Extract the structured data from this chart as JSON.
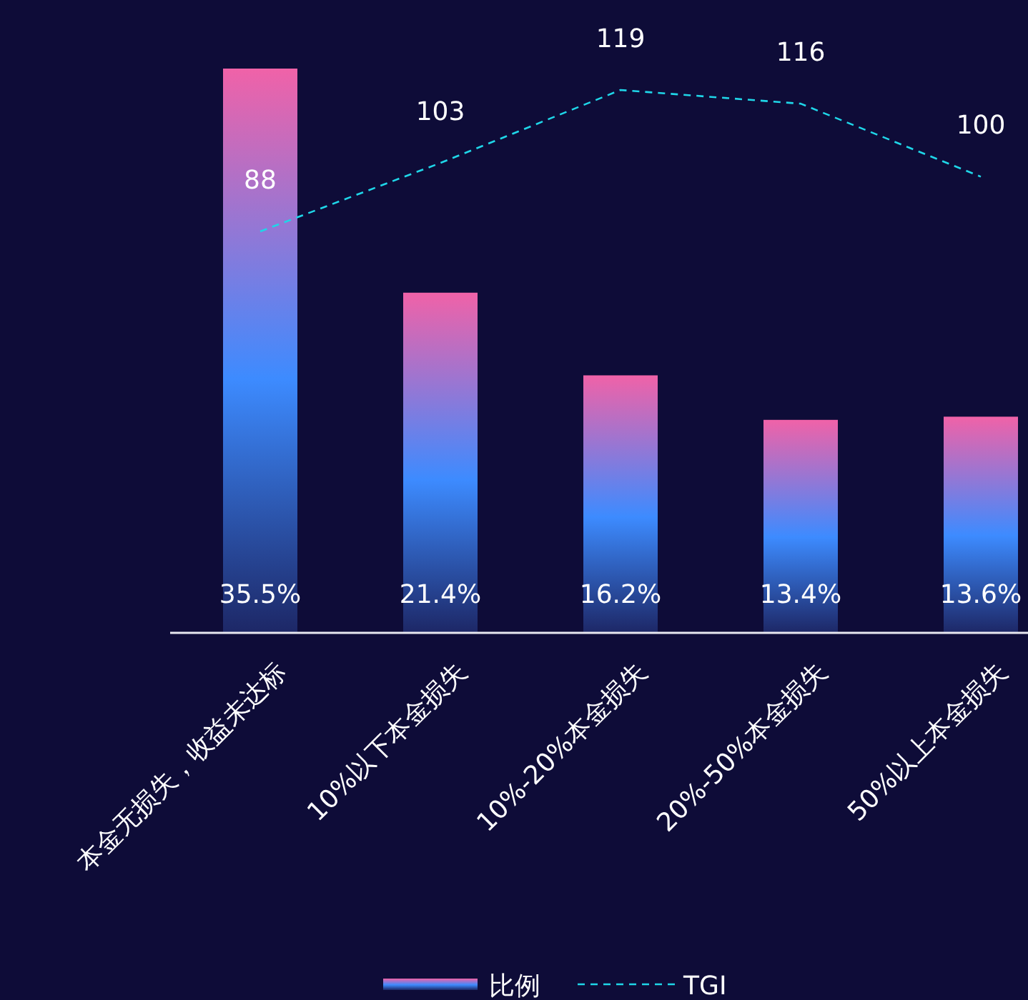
{
  "chart_data": {
    "type": "bar",
    "categories": [
      "本金无损失，收益未达标",
      "10%以下本金损失",
      "10%-20%本金损失",
      "20%-50%本金损失",
      "50%以上本金损失"
    ],
    "data_labels": true,
    "legend": "bottom",
    "series": [
      {
        "name": "比例",
        "color": "#3d8bff",
        "values": [
          35.5,
          21.4,
          16.2,
          13.4,
          13.6
        ],
        "value_labels": [
          "35.5%",
          "21.4%",
          "16.2%",
          "13.4%",
          "13.6%"
        ]
      },
      {
        "name": "TGI",
        "type": "line",
        "axis": "y2",
        "color": "#1fd6e8",
        "line_style": "dashed",
        "marker": "none",
        "values": [
          88,
          103,
          119,
          116,
          100
        ]
      }
    ]
  }
}
